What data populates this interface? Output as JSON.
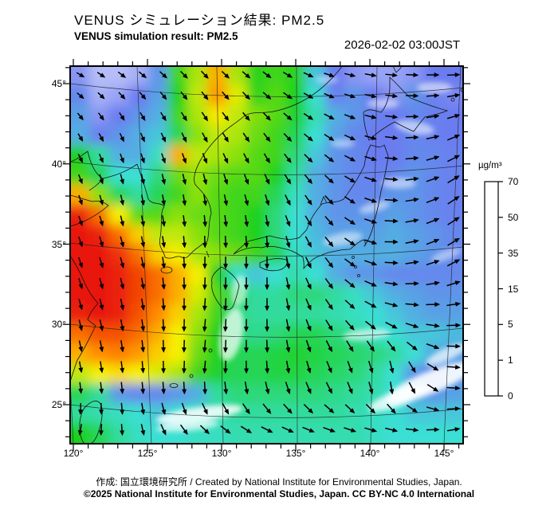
{
  "header": {
    "title_jp": "VENUS シミュレーション結果: PM2.5",
    "title_en": "VENUS simulation result: PM2.5",
    "timestamp": "2026-02-02 03:00JST"
  },
  "footer": {
    "credit": "作成: 国立環境研究所 / Created by National Institute for Environmental Studies, Japan.",
    "copyright": "©2025 National Institute for Environmental Studies, Japan. CC BY-NC 4.0 International"
  },
  "colorbar": {
    "units": "µg/m³",
    "tick_labels": [
      "70",
      "50",
      "35",
      "15",
      "5",
      "1",
      "0"
    ],
    "stops": [
      {
        "value": 0,
        "color": "#ffffff"
      },
      {
        "value": 1,
        "color": "#6b7cf0"
      },
      {
        "value": 5,
        "color": "#3adfd3"
      },
      {
        "value": 15,
        "color": "#1fd11f"
      },
      {
        "value": 35,
        "color": "#f5f000"
      },
      {
        "value": 50,
        "color": "#ff8c00"
      },
      {
        "value": 70,
        "color": "#e8150a"
      }
    ]
  },
  "axes": {
    "lon_major": [
      120,
      125,
      130,
      135,
      140,
      145
    ],
    "lon_minor_max": 146,
    "lat_major": [
      45,
      40,
      35,
      30,
      25
    ],
    "lat_minor_range": [
      23,
      46
    ],
    "degree_symbol": "°"
  },
  "chart_data": {
    "type": "heatmap",
    "variable": "PM2.5",
    "units": "µg/m³",
    "lon_range": [
      120,
      146.5
    ],
    "lat_range": [
      22.6,
      46.1
    ],
    "grid_cols": 20,
    "grid_rows": 19,
    "values": [
      [
        0.8,
        0.5,
        0.5,
        0.6,
        2,
        18,
        28,
        45,
        28,
        16,
        18,
        16,
        4,
        1,
        0.8,
        0.7,
        0.7,
        0.8,
        1,
        1
      ],
      [
        1.5,
        0.6,
        0.7,
        1,
        2.5,
        15,
        30,
        48,
        33,
        17,
        20,
        15,
        5,
        1.2,
        2,
        1,
        0.8,
        2,
        1.2,
        0.9
      ],
      [
        2.5,
        0.8,
        1,
        2,
        3,
        18,
        28,
        36,
        30,
        24,
        20,
        14,
        7,
        3,
        2,
        1.2,
        1,
        1.5,
        1.2,
        1
      ],
      [
        3,
        1.2,
        2,
        3,
        4,
        12,
        25,
        30,
        28,
        22,
        18,
        12,
        5,
        2.5,
        1.5,
        1,
        1,
        1.5,
        1.2,
        1
      ],
      [
        15,
        8,
        3,
        3,
        6,
        45,
        30,
        28,
        25,
        20,
        18,
        10,
        4,
        2,
        1.5,
        1,
        1,
        1.5,
        1.5,
        1.2
      ],
      [
        18,
        12,
        5,
        5,
        10,
        22,
        26,
        22,
        20,
        20,
        15,
        8,
        3,
        2,
        1.5,
        1.2,
        1.5,
        2,
        1.5,
        1.2
      ],
      [
        45,
        25,
        12,
        8,
        12,
        18,
        25,
        20,
        18,
        18,
        12,
        6,
        3,
        2,
        1.5,
        1.5,
        2,
        2,
        1.5,
        1.2
      ],
      [
        68,
        55,
        35,
        20,
        20,
        25,
        22,
        20,
        18,
        15,
        10,
        5,
        3,
        2,
        2,
        2,
        2.5,
        2,
        1.5,
        1.2
      ],
      [
        70,
        68,
        55,
        40,
        30,
        30,
        25,
        20,
        18,
        15,
        10,
        5,
        3.5,
        2.5,
        2.5,
        2.5,
        3,
        2.5,
        2,
        1.5
      ],
      [
        70,
        70,
        65,
        55,
        40,
        35,
        28,
        25,
        22,
        18,
        12,
        6,
        4,
        3,
        3,
        3,
        3,
        2.5,
        2,
        1.5
      ],
      [
        70,
        70,
        68,
        62,
        55,
        45,
        35,
        15,
        6,
        4,
        5,
        7,
        5,
        3,
        2,
        2,
        1.5,
        1.5,
        1.5,
        1.5
      ],
      [
        70,
        70,
        68,
        62,
        55,
        45,
        32,
        20,
        12,
        8,
        8,
        10,
        10,
        8,
        6,
        4,
        3,
        2.5,
        2,
        2
      ],
      [
        68,
        70,
        68,
        60,
        50,
        40,
        28,
        18,
        10,
        8,
        8,
        8,
        8,
        7,
        6,
        5,
        4,
        3,
        2.5,
        2.5
      ],
      [
        55,
        60,
        60,
        55,
        45,
        35,
        25,
        15,
        10,
        9,
        10,
        12,
        12,
        10,
        8,
        6,
        5,
        4,
        4,
        3.5
      ],
      [
        45,
        50,
        52,
        48,
        40,
        35,
        22,
        15,
        12,
        12,
        13,
        14,
        13,
        12,
        11,
        10,
        8,
        5,
        3,
        2.5
      ],
      [
        30,
        35,
        38,
        35,
        32,
        28,
        18,
        14,
        12,
        12,
        13,
        13,
        12,
        11,
        10,
        8,
        5,
        2,
        1.5,
        2
      ],
      [
        12,
        8,
        2,
        1.5,
        1.5,
        2,
        3,
        8,
        10,
        10,
        10,
        10,
        10,
        9,
        8,
        7,
        5,
        3,
        2,
        2.5
      ],
      [
        8,
        7,
        6,
        5,
        4,
        5,
        6,
        7,
        8,
        8,
        8,
        8,
        8,
        8,
        7,
        6,
        5,
        4,
        4,
        4
      ],
      [
        15,
        12,
        8,
        6,
        5,
        5,
        6,
        6,
        7,
        7,
        7,
        7,
        7,
        7,
        7,
        6,
        5,
        5,
        5,
        5
      ]
    ],
    "wind": {
      "cols": 7,
      "rows": 7,
      "angles_deg": [
        [
          25,
          35,
          45,
          35,
          15,
          5,
          0
        ],
        [
          55,
          65,
          60,
          50,
          30,
          5,
          -25
        ],
        [
          70,
          80,
          80,
          70,
          45,
          0,
          -40
        ],
        [
          70,
          75,
          90,
          90,
          50,
          -5,
          -35
        ],
        [
          75,
          80,
          95,
          90,
          55,
          15,
          -5
        ],
        [
          80,
          85,
          95,
          85,
          70,
          95,
          -10
        ],
        [
          110,
          80,
          30,
          10,
          5,
          -10,
          -15
        ]
      ],
      "magnitudes": [
        [
          0.7,
          0.75,
          0.8,
          0.8,
          0.85,
          0.95,
          1.0
        ],
        [
          0.7,
          0.75,
          0.85,
          0.85,
          0.9,
          1.0,
          1.05
        ],
        [
          0.8,
          0.85,
          0.9,
          0.9,
          0.95,
          1.05,
          1.1
        ],
        [
          0.85,
          0.9,
          0.95,
          0.95,
          1.0,
          1.05,
          1.1
        ],
        [
          0.9,
          0.95,
          1.0,
          1.0,
          1.0,
          1.05,
          1.1
        ],
        [
          0.9,
          0.95,
          1.0,
          1.0,
          1.0,
          1.0,
          1.05
        ],
        [
          0.9,
          0.9,
          0.95,
          1.0,
          1.0,
          1.0,
          1.0
        ]
      ]
    }
  }
}
